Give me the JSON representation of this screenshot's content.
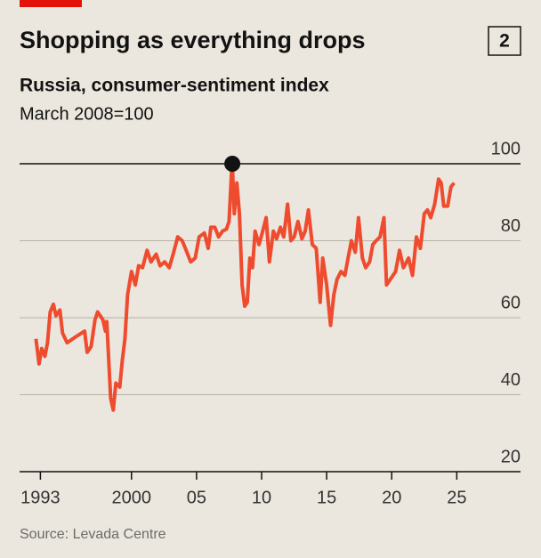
{
  "chart_data": {
    "type": "line",
    "title": "Shopping as everything drops",
    "chart_number": "2",
    "subtitle": "Russia, consumer-sentiment index",
    "unit_note": "March 2008=100",
    "source": "Source: Levada Centre",
    "xlim": [
      1991.4,
      2029.9
    ],
    "ylim": [
      20,
      100
    ],
    "yticks": [
      20,
      40,
      60,
      80,
      100
    ],
    "xticks": [
      1993,
      2000,
      {
        "value": 2005,
        "label": "05"
      },
      {
        "value": 2010,
        "label": "10"
      },
      {
        "value": 2015,
        "label": "15"
      },
      {
        "value": 2020,
        "label": "20"
      },
      {
        "value": 2025,
        "label": "25"
      }
    ],
    "grid": true,
    "series": [
      {
        "color": "#ee4b2f",
        "x": [
          1992.66,
          1992.9,
          1993.1,
          1993.35,
          1993.55,
          1993.75,
          1994.0,
          1994.2,
          1994.5,
          1994.7,
          1995.05,
          1995.7,
          1996.4,
          1996.6,
          1996.9,
          1997.2,
          1997.4,
          1997.8,
          1998.0,
          1998.1,
          1998.4,
          1998.6,
          1998.8,
          1999.1,
          1999.3,
          1999.5,
          1999.7,
          2000.0,
          2000.3,
          2000.55,
          2000.85,
          2001.2,
          2001.5,
          2001.9,
          2002.2,
          2002.55,
          2002.9,
          2003.2,
          2003.55,
          2003.9,
          2004.2,
          2004.55,
          2004.9,
          2005.2,
          2005.6,
          2005.9,
          2006.1,
          2006.4,
          2006.7,
          2007.0,
          2007.3,
          2007.5,
          2007.7,
          2007.75,
          2007.9,
          2008.1,
          2008.3,
          2008.5,
          2008.7,
          2008.9,
          2009.1,
          2009.3,
          2009.5,
          2009.8,
          2010.05,
          2010.35,
          2010.6,
          2010.9,
          2011.15,
          2011.45,
          2011.7,
          2012.0,
          2012.25,
          2012.5,
          2012.8,
          2013.1,
          2013.35,
          2013.6,
          2013.9,
          2014.2,
          2014.5,
          2014.7,
          2015.0,
          2015.3,
          2015.55,
          2015.8,
          2016.1,
          2016.4,
          2016.65,
          2016.9,
          2017.2,
          2017.45,
          2017.75,
          2018.0,
          2018.3,
          2018.55,
          2018.8,
          2019.1,
          2019.4,
          2019.6,
          2019.9,
          2020.3,
          2020.6,
          2020.9,
          2021.3,
          2021.6,
          2021.9,
          2022.2,
          2022.5,
          2022.75,
          2023.0,
          2023.3,
          2023.6,
          2023.8,
          2024.0,
          2024.3,
          2024.55,
          2024.8
        ],
        "values": [
          54.5,
          48,
          52,
          50,
          53.5,
          61.5,
          63.5,
          60.5,
          62,
          56,
          53.5,
          55,
          56.5,
          51,
          52.5,
          59.5,
          61.5,
          59.5,
          56.5,
          59,
          39,
          36,
          43,
          42,
          49,
          54.5,
          66,
          72,
          68.5,
          73.5,
          73,
          77.5,
          74.5,
          76.5,
          73.5,
          74.5,
          73,
          76.5,
          81,
          80,
          77.5,
          74.5,
          75.5,
          81,
          82,
          78,
          83.5,
          83.5,
          81,
          82.5,
          83,
          85,
          98.5,
          100,
          87,
          95,
          87,
          68.5,
          63,
          64,
          75.5,
          73,
          82.5,
          79,
          82,
          86,
          74.5,
          82.5,
          80.5,
          83.5,
          81,
          89.5,
          80,
          81,
          85,
          80.5,
          82.5,
          88,
          79,
          78,
          64,
          75.5,
          68.5,
          58,
          66,
          70,
          72,
          71,
          75.5,
          80,
          77,
          86,
          75.5,
          73,
          74.5,
          79,
          80,
          81,
          86,
          68.5,
          70,
          72,
          77.5,
          73,
          75.5,
          71,
          81,
          78,
          87,
          88,
          86,
          89.5,
          96,
          95,
          89,
          89,
          94,
          95
        ]
      }
    ]
  }
}
